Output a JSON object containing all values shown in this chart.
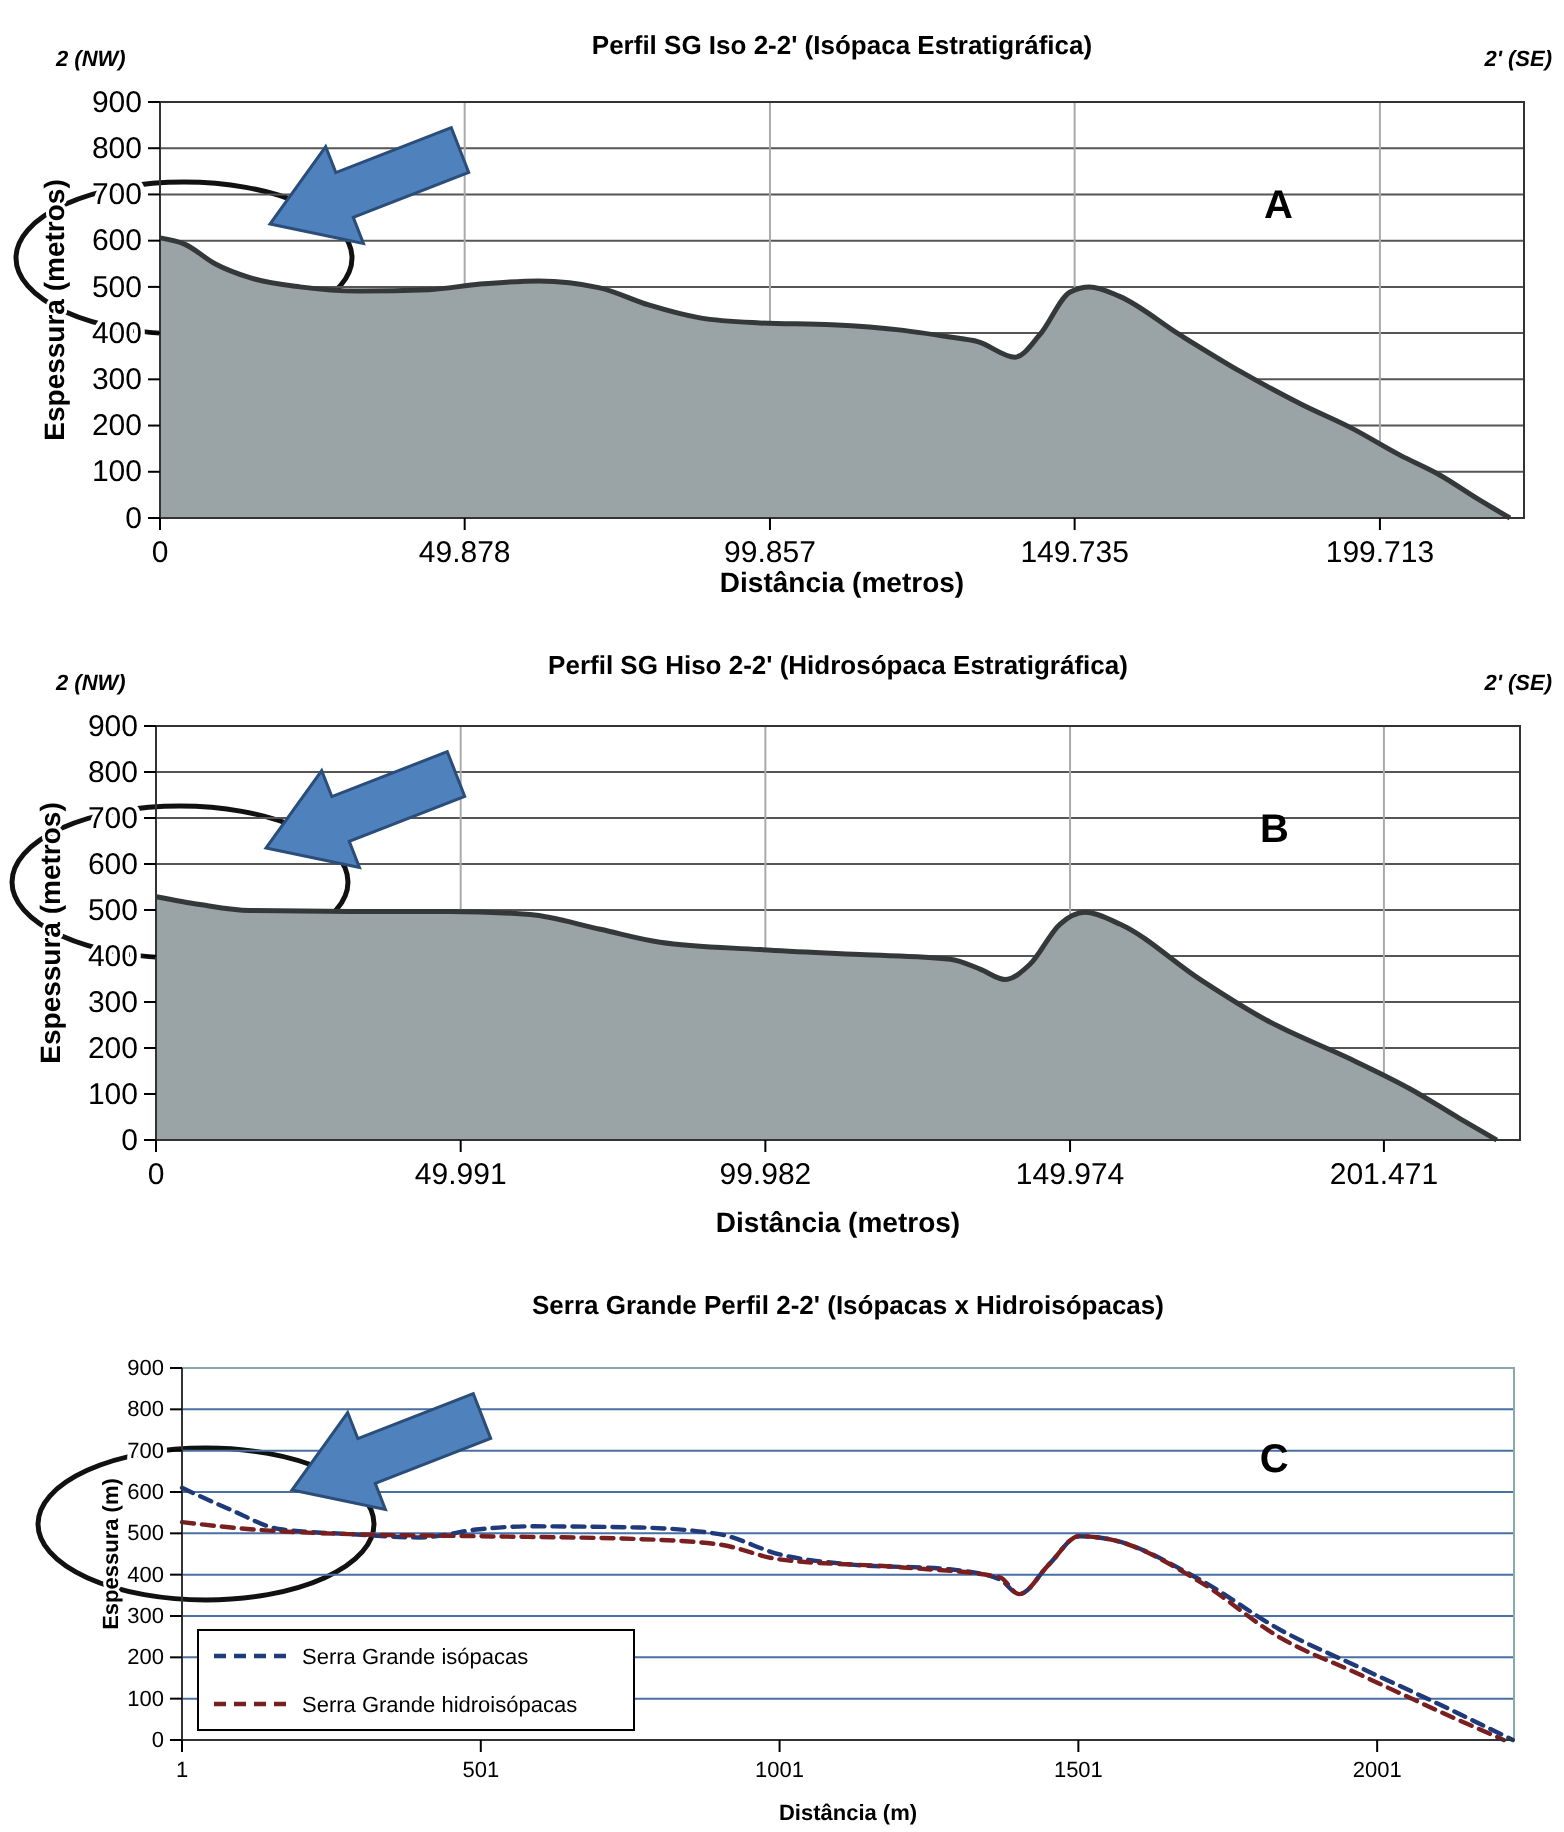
{
  "chart_data": [
    {
      "type": "area",
      "title": "Perfil SG Iso 2-2' (Isópaca Estratigráfica)",
      "xlabel": "Distância (metros)",
      "ylabel": "Espessura (metros)",
      "annotations": [
        "2 (NW)",
        "2' (SE)",
        "A"
      ],
      "xlim": [
        0,
        223.3
      ],
      "xticks": [
        0,
        49.878,
        99.857,
        149.735,
        199.713
      ],
      "ylim": [
        0,
        900
      ],
      "yticks": [
        0,
        100,
        200,
        300,
        400,
        500,
        600,
        700,
        800,
        900
      ],
      "grid": true,
      "series": [
        {
          "color": "#9aa3a6",
          "x": [
            0,
            4.1,
            9,
            14.7,
            22.9,
            32.7,
            44,
            52.4,
            62,
            72,
            80,
            88.4,
            98.2,
            110,
            121,
            129,
            134,
            140,
            144,
            149,
            152.2,
            157,
            167,
            177,
            187,
            195,
            203,
            209.5,
            216,
            221
          ],
          "values": [
            606,
            592,
            550,
            520,
            500,
            491,
            494,
            506,
            513,
            498,
            461,
            433,
            422,
            418,
            407,
            392,
            381,
            348,
            396,
            489,
            500,
            480,
            396,
            316,
            245,
            195,
            136,
            93,
            39,
            0
          ]
        }
      ]
    },
    {
      "type": "area",
      "title": "Perfil SG Hiso 2-2' (Hidrosópaca Estratigráfica)",
      "xlabel": "Distância (metros)",
      "ylabel": "Espessura (metros)",
      "annotations": [
        "2 (NW)",
        "2' (SE)",
        "B"
      ],
      "xlim": [
        0,
        223.8
      ],
      "xticks": [
        0,
        49.991,
        99.982,
        149.974,
        201.471
      ],
      "ylim": [
        0,
        900
      ],
      "yticks": [
        0,
        100,
        200,
        300,
        400,
        500,
        600,
        700,
        800,
        900
      ],
      "grid": true,
      "series": [
        {
          "color": "#9aa3a6",
          "x": [
            0,
            7.2,
            15.4,
            31.8,
            48.2,
            61.4,
            72.9,
            82.7,
            99.1,
            115.5,
            130.3,
            135.3,
            139.3,
            143.4,
            148.3,
            152.4,
            158.2,
            171.3,
            182,
            184.5,
            196,
            205.8,
            214,
            220
          ],
          "values": [
            529,
            512,
            499,
            497,
            497,
            490,
            458,
            430,
            414,
            403,
            393,
            371,
            349,
            382,
            469,
            495,
            469,
            349,
            262,
            245,
            176,
            111,
            46,
            0
          ]
        }
      ]
    },
    {
      "type": "line",
      "title": "Serra Grande Perfil 2-2' (Isópacas x Hidroisópacas)",
      "xlabel": "Distância (m)",
      "ylabel": "Espessura (m)",
      "annotations": [
        "C"
      ],
      "xlim": [
        1,
        2230
      ],
      "xticks": [
        1,
        501,
        1001,
        1501,
        2001
      ],
      "ylim": [
        0,
        900
      ],
      "yticks": [
        0,
        100,
        200,
        300,
        400,
        500,
        600,
        700,
        800,
        900
      ],
      "grid": "y",
      "legend": "bottom left",
      "line_style": "dashed",
      "series": [
        {
          "name": "Serra Grande isópacas",
          "color": "#1f3a7a",
          "x": [
            1,
            81,
            165,
            282,
            399,
            499,
            583,
            767,
            900,
            1001,
            1118,
            1285,
            1369,
            1402,
            1452,
            1502,
            1552,
            1703,
            1837,
            1971,
            2104,
            2228
          ],
          "values": [
            610,
            558,
            510,
            498,
            490,
            510,
            517,
            514,
            498,
            449,
            425,
            413,
            389,
            353,
            425,
            493,
            486,
            389,
            268,
            176,
            87,
            0
          ]
        },
        {
          "name": "Serra Grande hidroisópacas",
          "color": "#7a1f1f",
          "x": [
            1,
            115,
            282,
            499,
            767,
            900,
            1001,
            1202,
            1369,
            1402,
            1452,
            1502,
            1552,
            1703,
            1837,
            1971,
            2104,
            2213
          ],
          "values": [
            527,
            510,
            498,
            493,
            486,
            473,
            437,
            418,
            394,
            353,
            425,
            493,
            486,
            384,
            249,
            159,
            70,
            0
          ]
        }
      ]
    }
  ]
}
